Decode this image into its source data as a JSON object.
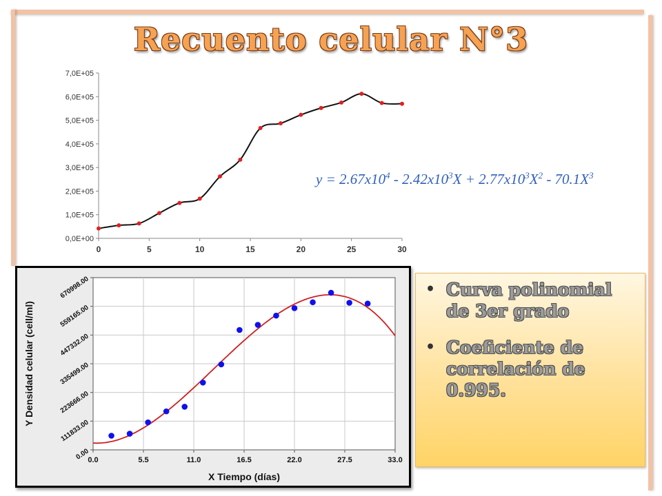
{
  "title": "Recuento celular N°3",
  "equation": {
    "y": "y",
    "eq": " = 2.67x10",
    "e1": "4",
    "p2": " - 2.42x10",
    "e2": "3",
    "p3": "X + 2.77x10",
    "e3": "3",
    "p4": "X",
    "e4": "2",
    "p5": " - 70.1X",
    "e5": "3"
  },
  "bullets": [
    "Curva  polinomial de  3er grado",
    "Coeficiente de correlación de 0.995."
  ],
  "colors": {
    "title": "#f6a253",
    "point_top": "#e02020",
    "fit_line": "#cc2020",
    "point_bottom": "#1010ee",
    "equation": "#2f5fbf"
  },
  "chart_data": [
    {
      "type": "line",
      "x": [
        0,
        2,
        4,
        6,
        8,
        10,
        12,
        14,
        16,
        18,
        20,
        22,
        24,
        26,
        28,
        30
      ],
      "y": [
        42000,
        55000,
        63000,
        107000,
        150000,
        168000,
        262000,
        333000,
        467000,
        487000,
        523000,
        552000,
        575000,
        612000,
        573000,
        570000
      ],
      "xlim": [
        0,
        30
      ],
      "ylim": [
        0,
        700000
      ],
      "xticks": [
        "0",
        "5",
        "10",
        "15",
        "20",
        "25",
        "30"
      ],
      "yticks": [
        "0,0E+00",
        "1,0E+05",
        "2,0E+05",
        "3,0E+05",
        "4,0E+05",
        "5,0E+05",
        "6,0E+05",
        "7,0E+05"
      ],
      "smooth": true,
      "grid": false
    },
    {
      "type": "scatter",
      "xlabel": "X Tiempo (días)",
      "ylabel": "Y Densidad celular (cell/ml)",
      "x": [
        2,
        4,
        6,
        8,
        10,
        12,
        14,
        16,
        18,
        20,
        22,
        24,
        26,
        28,
        30
      ],
      "y": [
        55000,
        63000,
        107000,
        150000,
        168000,
        262000,
        333000,
        467000,
        487000,
        523000,
        552000,
        575000,
        612000,
        573000,
        570000
      ],
      "fit": {
        "type": "polynomial",
        "degree": 3,
        "coefficients": [
          26700,
          -2420,
          2770,
          -70.1
        ]
      },
      "xlim": [
        0,
        33
      ],
      "ylim": [
        0,
        670998
      ],
      "xticks": [
        "0.0",
        "5.5",
        "11.0",
        "16.5",
        "22.0",
        "27.5",
        "33.0"
      ],
      "yticks": [
        "0.00",
        "111833.00",
        "223666.00",
        "335499.00",
        "447332.00",
        "559165.00",
        "670998.00"
      ],
      "grid": true
    }
  ]
}
